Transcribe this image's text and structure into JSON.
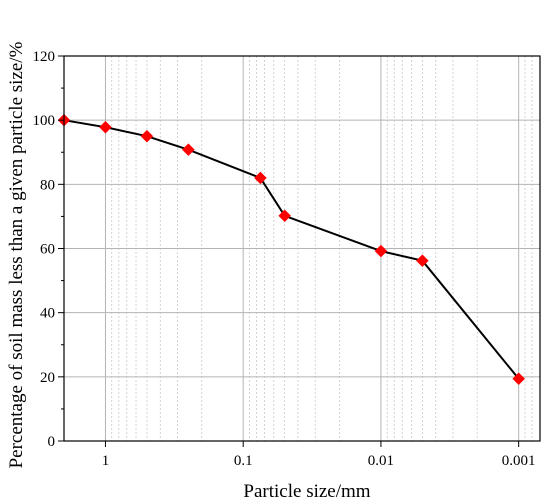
{
  "chart_data": {
    "type": "line",
    "xlabel": "Particle size/mm",
    "ylabel": "Percentage of soil mass less than a given particle size/%",
    "x_scale": "log",
    "x_reversed": true,
    "xlim": [
      2.0,
      0.0007
    ],
    "ylim": [
      0,
      120
    ],
    "x_ticks": [
      1,
      0.1,
      0.01,
      0.001
    ],
    "x_tick_labels": [
      "1",
      "0.1",
      "0.01",
      "0.001"
    ],
    "y_ticks": [
      0,
      20,
      40,
      60,
      80,
      100,
      120
    ],
    "y_tick_labels": [
      "0",
      "20",
      "40",
      "60",
      "80",
      "100",
      "120"
    ],
    "grid": {
      "major": true,
      "minor": true
    },
    "legend": "none",
    "series": [
      {
        "color": "#000000",
        "marker": "diamond",
        "marker_color": "#ff0000",
        "x": [
          2,
          1,
          0.5,
          0.25,
          0.075,
          0.05,
          0.01,
          0.005,
          0.001
        ],
        "y": [
          100,
          97.8,
          95,
          90.8,
          82,
          70.2,
          59.2,
          56.2,
          19.4
        ]
      }
    ]
  }
}
